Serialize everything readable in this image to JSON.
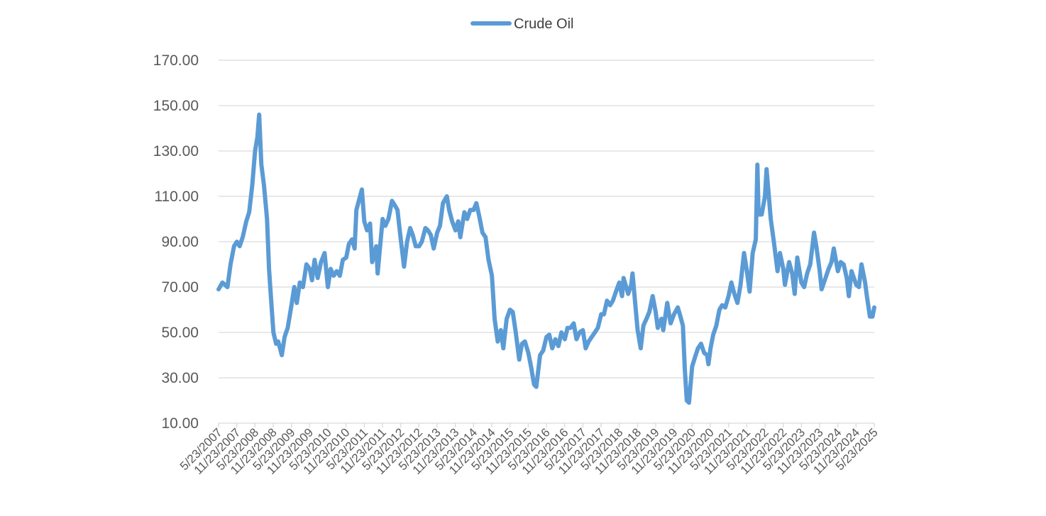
{
  "chart_data": {
    "type": "line",
    "title": "",
    "xlabel": "",
    "ylabel": "",
    "ylim": [
      10,
      170
    ],
    "yticks": [
      "10.00",
      "30.00",
      "50.00",
      "70.00",
      "90.00",
      "110.00",
      "130.00",
      "150.00",
      "170.00"
    ],
    "x_tick_labels": [
      "5/23/2007",
      "11/23/2007",
      "5/23/2008",
      "11/23/2008",
      "5/23/2009",
      "11/23/2009",
      "5/23/2010",
      "11/23/2010",
      "5/23/2011",
      "11/23/2011",
      "5/23/2012",
      "11/23/2012",
      "5/23/2013",
      "11/23/2013",
      "5/23/2014",
      "11/23/2014",
      "5/23/2015",
      "11/23/2015",
      "5/23/2016",
      "11/23/2016",
      "5/23/2017",
      "11/23/2017",
      "5/23/2018",
      "11/23/2018",
      "5/23/2019",
      "11/23/2019",
      "5/23/2020",
      "11/23/2020",
      "5/23/2021",
      "11/23/2021",
      "5/23/2022",
      "11/23/2022",
      "5/23/2023",
      "11/23/2023",
      "5/23/2024",
      "11/23/2024",
      "5/23/2025"
    ],
    "grid": true,
    "legend_position": "top-center",
    "series": [
      {
        "name": "Crude Oil",
        "color": "#5b9bd5",
        "points": [
          [
            "2007-05-23",
            69
          ],
          [
            "2007-07-01",
            72
          ],
          [
            "2007-08-20",
            70
          ],
          [
            "2007-09-20",
            80
          ],
          [
            "2007-10-25",
            88
          ],
          [
            "2007-11-23",
            90
          ],
          [
            "2007-12-20",
            88
          ],
          [
            "2008-01-20",
            92
          ],
          [
            "2008-02-25",
            99
          ],
          [
            "2008-03-25",
            103
          ],
          [
            "2008-04-25",
            115
          ],
          [
            "2008-05-23",
            130
          ],
          [
            "2008-06-15",
            136
          ],
          [
            "2008-07-03",
            146
          ],
          [
            "2008-07-25",
            124
          ],
          [
            "2008-08-20",
            115
          ],
          [
            "2008-09-20",
            100
          ],
          [
            "2008-10-10",
            78
          ],
          [
            "2008-10-30",
            65
          ],
          [
            "2008-11-23",
            50
          ],
          [
            "2008-12-20",
            45
          ],
          [
            "2009-01-10",
            46
          ],
          [
            "2009-02-15",
            40
          ],
          [
            "2009-03-15",
            48
          ],
          [
            "2009-04-15",
            52
          ],
          [
            "2009-05-23",
            62
          ],
          [
            "2009-06-20",
            70
          ],
          [
            "2009-07-15",
            63
          ],
          [
            "2009-08-15",
            72
          ],
          [
            "2009-09-15",
            70
          ],
          [
            "2009-10-20",
            80
          ],
          [
            "2009-11-23",
            78
          ],
          [
            "2009-12-15",
            73
          ],
          [
            "2010-01-10",
            82
          ],
          [
            "2010-02-10",
            74
          ],
          [
            "2010-03-15",
            81
          ],
          [
            "2010-04-20",
            85
          ],
          [
            "2010-05-23",
            70
          ],
          [
            "2010-06-20",
            78
          ],
          [
            "2010-07-20",
            75
          ],
          [
            "2010-08-20",
            77
          ],
          [
            "2010-09-20",
            75
          ],
          [
            "2010-10-20",
            82
          ],
          [
            "2010-11-23",
            83
          ],
          [
            "2010-12-20",
            89
          ],
          [
            "2011-01-20",
            91
          ],
          [
            "2011-02-15",
            87
          ],
          [
            "2011-03-05",
            104
          ],
          [
            "2011-04-29",
            113
          ],
          [
            "2011-05-23",
            99
          ],
          [
            "2011-06-20",
            95
          ],
          [
            "2011-07-20",
            98
          ],
          [
            "2011-08-10",
            81
          ],
          [
            "2011-09-20",
            88
          ],
          [
            "2011-10-04",
            76
          ],
          [
            "2011-11-23",
            100
          ],
          [
            "2011-12-20",
            97
          ],
          [
            "2012-01-20",
            100
          ],
          [
            "2012-02-25",
            108
          ],
          [
            "2012-03-25",
            106
          ],
          [
            "2012-04-20",
            104
          ],
          [
            "2012-05-23",
            91
          ],
          [
            "2012-06-25",
            79
          ],
          [
            "2012-07-25",
            90
          ],
          [
            "2012-08-25",
            96
          ],
          [
            "2012-09-20",
            93
          ],
          [
            "2012-10-20",
            88
          ],
          [
            "2012-11-23",
            88
          ],
          [
            "2012-12-20",
            90
          ],
          [
            "2013-01-25",
            96
          ],
          [
            "2013-02-20",
            95
          ],
          [
            "2013-03-20",
            93
          ],
          [
            "2013-04-18",
            87
          ],
          [
            "2013-05-23",
            94
          ],
          [
            "2013-06-20",
            97
          ],
          [
            "2013-07-20",
            107
          ],
          [
            "2013-08-28",
            110
          ],
          [
            "2013-09-20",
            104
          ],
          [
            "2013-10-20",
            99
          ],
          [
            "2013-11-23",
            95
          ],
          [
            "2013-12-20",
            99
          ],
          [
            "2014-01-10",
            92
          ],
          [
            "2014-02-20",
            103
          ],
          [
            "2014-03-20",
            100
          ],
          [
            "2014-04-20",
            104
          ],
          [
            "2014-05-23",
            104
          ],
          [
            "2014-06-20",
            107
          ],
          [
            "2014-07-20",
            101
          ],
          [
            "2014-08-20",
            94
          ],
          [
            "2014-09-20",
            92
          ],
          [
            "2014-10-20",
            82
          ],
          [
            "2014-11-23",
            75
          ],
          [
            "2014-12-20",
            56
          ],
          [
            "2015-01-20",
            46
          ],
          [
            "2015-02-20",
            51
          ],
          [
            "2015-03-17",
            43
          ],
          [
            "2015-04-20",
            56
          ],
          [
            "2015-05-23",
            60
          ],
          [
            "2015-06-20",
            59
          ],
          [
            "2015-07-20",
            50
          ],
          [
            "2015-08-24",
            38
          ],
          [
            "2015-09-20",
            45
          ],
          [
            "2015-10-20",
            46
          ],
          [
            "2015-11-23",
            41
          ],
          [
            "2015-12-20",
            35
          ],
          [
            "2016-01-20",
            27
          ],
          [
            "2016-02-11",
            26
          ],
          [
            "2016-03-20",
            40
          ],
          [
            "2016-04-20",
            42
          ],
          [
            "2016-05-23",
            48
          ],
          [
            "2016-06-20",
            49
          ],
          [
            "2016-07-20",
            43
          ],
          [
            "2016-08-20",
            47
          ],
          [
            "2016-09-20",
            44
          ],
          [
            "2016-10-20",
            50
          ],
          [
            "2016-11-23",
            47
          ],
          [
            "2016-12-20",
            52
          ],
          [
            "2017-01-20",
            52
          ],
          [
            "2017-02-20",
            54
          ],
          [
            "2017-03-20",
            47
          ],
          [
            "2017-04-20",
            50
          ],
          [
            "2017-05-23",
            51
          ],
          [
            "2017-06-20",
            43
          ],
          [
            "2017-07-20",
            46
          ],
          [
            "2017-08-20",
            48
          ],
          [
            "2017-09-20",
            50
          ],
          [
            "2017-10-20",
            52
          ],
          [
            "2017-11-23",
            58
          ],
          [
            "2017-12-20",
            58
          ],
          [
            "2018-01-20",
            64
          ],
          [
            "2018-02-20",
            62
          ],
          [
            "2018-03-20",
            64
          ],
          [
            "2018-04-20",
            68
          ],
          [
            "2018-05-23",
            72
          ],
          [
            "2018-06-20",
            66
          ],
          [
            "2018-07-05",
            74
          ],
          [
            "2018-08-20",
            67
          ],
          [
            "2018-09-20",
            71
          ],
          [
            "2018-10-03",
            76
          ],
          [
            "2018-11-23",
            51
          ],
          [
            "2018-12-24",
            43
          ],
          [
            "2019-01-20",
            53
          ],
          [
            "2019-02-20",
            56
          ],
          [
            "2019-03-20",
            59
          ],
          [
            "2019-04-23",
            66
          ],
          [
            "2019-05-23",
            59
          ],
          [
            "2019-06-13",
            52
          ],
          [
            "2019-07-20",
            56
          ],
          [
            "2019-08-07",
            51
          ],
          [
            "2019-09-16",
            63
          ],
          [
            "2019-10-20",
            54
          ],
          [
            "2019-11-23",
            58
          ],
          [
            "2019-12-31",
            61
          ],
          [
            "2020-01-20",
            58
          ],
          [
            "2020-02-20",
            53
          ],
          [
            "2020-03-10",
            34
          ],
          [
            "2020-03-30",
            20
          ],
          [
            "2020-04-21",
            19
          ],
          [
            "2020-05-23",
            35
          ],
          [
            "2020-06-20",
            39
          ],
          [
            "2020-07-20",
            43
          ],
          [
            "2020-08-20",
            45
          ],
          [
            "2020-09-20",
            41
          ],
          [
            "2020-10-20",
            40
          ],
          [
            "2020-11-02",
            36
          ],
          [
            "2020-11-23",
            43
          ],
          [
            "2020-12-20",
            49
          ],
          [
            "2021-01-20",
            53
          ],
          [
            "2021-02-20",
            60
          ],
          [
            "2021-03-20",
            62
          ],
          [
            "2021-04-20",
            61
          ],
          [
            "2021-05-23",
            66
          ],
          [
            "2021-06-20",
            72
          ],
          [
            "2021-07-20",
            67
          ],
          [
            "2021-08-20",
            63
          ],
          [
            "2021-09-20",
            71
          ],
          [
            "2021-10-25",
            85
          ],
          [
            "2021-11-23",
            77
          ],
          [
            "2021-12-20",
            68
          ],
          [
            "2022-01-20",
            85
          ],
          [
            "2022-02-20",
            91
          ],
          [
            "2022-03-08",
            124
          ],
          [
            "2022-03-20",
            102
          ],
          [
            "2022-04-20",
            102
          ],
          [
            "2022-05-23",
            110
          ],
          [
            "2022-06-08",
            122
          ],
          [
            "2022-07-20",
            100
          ],
          [
            "2022-08-20",
            90
          ],
          [
            "2022-09-26",
            77
          ],
          [
            "2022-10-20",
            85
          ],
          [
            "2022-11-23",
            78
          ],
          [
            "2022-12-09",
            71
          ],
          [
            "2023-01-20",
            81
          ],
          [
            "2023-02-20",
            76
          ],
          [
            "2023-03-17",
            67
          ],
          [
            "2023-04-12",
            83
          ],
          [
            "2023-05-23",
            72
          ],
          [
            "2023-06-20",
            70
          ],
          [
            "2023-07-20",
            76
          ],
          [
            "2023-08-20",
            80
          ],
          [
            "2023-09-27",
            94
          ],
          [
            "2023-10-20",
            88
          ],
          [
            "2023-11-23",
            77
          ],
          [
            "2023-12-12",
            69
          ],
          [
            "2024-01-20",
            74
          ],
          [
            "2024-02-20",
            78
          ],
          [
            "2024-03-20",
            81
          ],
          [
            "2024-04-12",
            87
          ],
          [
            "2024-05-23",
            77
          ],
          [
            "2024-06-20",
            81
          ],
          [
            "2024-07-20",
            80
          ],
          [
            "2024-08-20",
            74
          ],
          [
            "2024-09-10",
            66
          ],
          [
            "2024-10-07",
            77
          ],
          [
            "2024-11-23",
            71
          ],
          [
            "2024-12-20",
            70
          ],
          [
            "2025-01-15",
            80
          ],
          [
            "2025-02-20",
            72
          ],
          [
            "2025-03-10",
            66
          ],
          [
            "2025-04-09",
            57
          ],
          [
            "2025-05-05",
            57
          ],
          [
            "2025-05-23",
            61
          ]
        ]
      }
    ]
  }
}
